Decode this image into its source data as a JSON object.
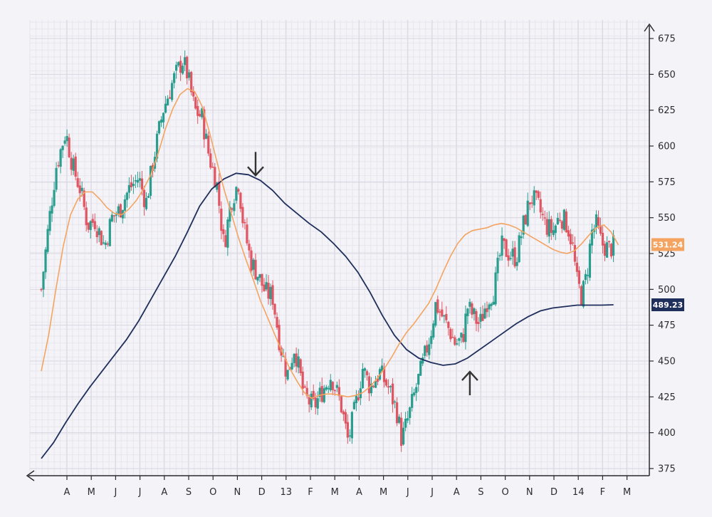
{
  "colors": {
    "background": "#f4f3f8",
    "grid_major": "#d9d7e1",
    "grid_minor": "#e7e6ed",
    "axis": "#2b2b2b",
    "candle_up": "#2a9d8f",
    "candle_down": "#e05561",
    "sma_short": "#f4a460",
    "sma_long": "#1f2f5c",
    "arrow": "#333333"
  },
  "chart_data": {
    "type": "candlestick",
    "grid": true,
    "y_axis_position": "right",
    "ylim": [
      370,
      682
    ],
    "y_ticks": [
      375,
      400,
      425,
      450,
      475,
      500,
      525,
      550,
      575,
      600,
      625,
      650,
      675
    ],
    "x_axis": {
      "labels": [
        "A",
        "M",
        "J",
        "J",
        "A",
        "S",
        "O",
        "N",
        "D",
        "13",
        "F",
        "M",
        "A",
        "M",
        "J",
        "J",
        "A",
        "S",
        "O",
        "N",
        "D",
        "14",
        "F",
        "M"
      ],
      "range": [
        0,
        24.5
      ]
    },
    "price_anchors": [
      [
        0.0,
        500
      ],
      [
        0.3,
        545
      ],
      [
        0.6,
        585
      ],
      [
        1.0,
        610
      ],
      [
        1.3,
        585
      ],
      [
        1.6,
        570
      ],
      [
        1.9,
        545
      ],
      [
        2.2,
        548
      ],
      [
        2.6,
        530
      ],
      [
        2.9,
        550
      ],
      [
        3.2,
        555
      ],
      [
        3.6,
        570
      ],
      [
        4.0,
        578
      ],
      [
        4.3,
        560
      ],
      [
        4.6,
        590
      ],
      [
        5.0,
        625
      ],
      [
        5.4,
        645
      ],
      [
        5.8,
        660
      ],
      [
        6.0,
        650
      ],
      [
        6.3,
        625
      ],
      [
        6.6,
        620
      ],
      [
        6.9,
        592
      ],
      [
        7.2,
        575
      ],
      [
        7.5,
        530
      ],
      [
        7.8,
        562
      ],
      [
        8.1,
        575
      ],
      [
        8.3,
        545
      ],
      [
        8.6,
        520
      ],
      [
        8.9,
        510
      ],
      [
        9.2,
        498
      ],
      [
        9.5,
        495
      ],
      [
        9.8,
        462
      ],
      [
        10.1,
        440
      ],
      [
        10.4,
        460
      ],
      [
        10.8,
        425
      ],
      [
        11.2,
        418
      ],
      [
        11.5,
        428
      ],
      [
        11.9,
        440
      ],
      [
        12.3,
        420
      ],
      [
        12.6,
        394
      ],
      [
        12.9,
        418
      ],
      [
        13.2,
        445
      ],
      [
        13.5,
        432
      ],
      [
        13.9,
        442
      ],
      [
        14.3,
        430
      ],
      [
        14.6,
        415
      ],
      [
        14.8,
        395
      ],
      [
        15.1,
        412
      ],
      [
        15.4,
        432
      ],
      [
        15.7,
        450
      ],
      [
        16.0,
        470
      ],
      [
        16.2,
        490
      ],
      [
        16.5,
        480
      ],
      [
        16.8,
        470
      ],
      [
        17.0,
        462
      ],
      [
        17.3,
        465
      ],
      [
        17.5,
        488
      ],
      [
        17.8,
        480
      ],
      [
        18.0,
        475
      ],
      [
        18.3,
        492
      ],
      [
        18.6,
        500
      ],
      [
        18.9,
        530
      ],
      [
        19.2,
        525
      ],
      [
        19.5,
        522
      ],
      [
        19.8,
        545
      ],
      [
        20.1,
        565
      ],
      [
        20.4,
        558
      ],
      [
        20.7,
        545
      ],
      [
        21.0,
        540
      ],
      [
        21.3,
        552
      ],
      [
        21.6,
        545
      ],
      [
        21.8,
        532
      ],
      [
        22.0,
        505
      ],
      [
        22.2,
        495
      ],
      [
        22.4,
        510
      ],
      [
        22.6,
        540
      ],
      [
        22.8,
        545
      ],
      [
        23.0,
        532
      ],
      [
        23.3,
        528
      ],
      [
        23.5,
        530
      ]
    ],
    "sma_short": [
      [
        0.0,
        443
      ],
      [
        0.3,
        468
      ],
      [
        0.6,
        500
      ],
      [
        0.9,
        530
      ],
      [
        1.2,
        552
      ],
      [
        1.5,
        563
      ],
      [
        1.8,
        568
      ],
      [
        2.1,
        568
      ],
      [
        2.4,
        563
      ],
      [
        2.7,
        557
      ],
      [
        3.0,
        553
      ],
      [
        3.3,
        552
      ],
      [
        3.6,
        556
      ],
      [
        3.9,
        562
      ],
      [
        4.2,
        570
      ],
      [
        4.5,
        580
      ],
      [
        4.8,
        595
      ],
      [
        5.1,
        612
      ],
      [
        5.4,
        626
      ],
      [
        5.7,
        636
      ],
      [
        6.0,
        640
      ],
      [
        6.3,
        638
      ],
      [
        6.6,
        628
      ],
      [
        6.9,
        610
      ],
      [
        7.2,
        590
      ],
      [
        7.5,
        570
      ],
      [
        7.8,
        553
      ],
      [
        8.1,
        536
      ],
      [
        8.4,
        521
      ],
      [
        8.7,
        507
      ],
      [
        9.0,
        492
      ],
      [
        9.3,
        480
      ],
      [
        9.6,
        468
      ],
      [
        9.9,
        456
      ],
      [
        10.2,
        445
      ],
      [
        10.5,
        436
      ],
      [
        10.8,
        428
      ],
      [
        11.1,
        424
      ],
      [
        11.4,
        426
      ],
      [
        11.7,
        427
      ],
      [
        12.0,
        427
      ],
      [
        12.3,
        426
      ],
      [
        12.6,
        425
      ],
      [
        12.9,
        426
      ],
      [
        13.2,
        428
      ],
      [
        13.5,
        432
      ],
      [
        13.8,
        438
      ],
      [
        14.1,
        445
      ],
      [
        14.4,
        453
      ],
      [
        14.7,
        462
      ],
      [
        15.0,
        470
      ],
      [
        15.3,
        476
      ],
      [
        15.6,
        483
      ],
      [
        15.9,
        490
      ],
      [
        16.2,
        500
      ],
      [
        16.5,
        512
      ],
      [
        16.8,
        523
      ],
      [
        17.1,
        532
      ],
      [
        17.4,
        538
      ],
      [
        17.7,
        541
      ],
      [
        18.0,
        542
      ],
      [
        18.3,
        543
      ],
      [
        18.6,
        545
      ],
      [
        18.9,
        546
      ],
      [
        19.2,
        545
      ],
      [
        19.5,
        543
      ],
      [
        19.8,
        540
      ],
      [
        20.1,
        537
      ],
      [
        20.4,
        534
      ],
      [
        20.7,
        531
      ],
      [
        21.0,
        528
      ],
      [
        21.3,
        526
      ],
      [
        21.6,
        525
      ],
      [
        21.9,
        527
      ],
      [
        22.2,
        532
      ],
      [
        22.5,
        538
      ],
      [
        22.8,
        543
      ],
      [
        23.1,
        545
      ],
      [
        23.4,
        540
      ],
      [
        23.7,
        531
      ]
    ],
    "sma_long": [
      [
        0.0,
        382
      ],
      [
        0.5,
        393
      ],
      [
        1.0,
        407
      ],
      [
        1.5,
        420
      ],
      [
        2.0,
        432
      ],
      [
        2.5,
        443
      ],
      [
        3.0,
        454
      ],
      [
        3.5,
        465
      ],
      [
        4.0,
        478
      ],
      [
        4.5,
        493
      ],
      [
        5.0,
        508
      ],
      [
        5.5,
        523
      ],
      [
        6.0,
        540
      ],
      [
        6.5,
        558
      ],
      [
        7.0,
        570
      ],
      [
        7.5,
        577
      ],
      [
        8.0,
        581
      ],
      [
        8.5,
        580
      ],
      [
        9.0,
        576
      ],
      [
        9.5,
        569
      ],
      [
        10.0,
        560
      ],
      [
        10.5,
        553
      ],
      [
        11.0,
        546
      ],
      [
        11.5,
        540
      ],
      [
        12.0,
        532
      ],
      [
        12.5,
        523
      ],
      [
        13.0,
        512
      ],
      [
        13.5,
        498
      ],
      [
        14.0,
        482
      ],
      [
        14.5,
        468
      ],
      [
        15.0,
        458
      ],
      [
        15.5,
        452
      ],
      [
        16.0,
        449
      ],
      [
        16.5,
        447
      ],
      [
        17.0,
        448
      ],
      [
        17.5,
        452
      ],
      [
        18.0,
        458
      ],
      [
        18.5,
        464
      ],
      [
        19.0,
        470
      ],
      [
        19.5,
        476
      ],
      [
        20.0,
        481
      ],
      [
        20.5,
        485
      ],
      [
        21.0,
        487
      ],
      [
        21.5,
        488
      ],
      [
        22.0,
        489
      ],
      [
        22.5,
        489
      ],
      [
        23.0,
        489
      ],
      [
        23.5,
        489.23
      ]
    ],
    "badges": [
      {
        "value": 531.24,
        "label": "531.24",
        "color": "#f4a460"
      },
      {
        "value": 489.23,
        "label": "489.23",
        "color": "#1f2f5c"
      }
    ],
    "annotations": [
      {
        "type": "arrow-down",
        "x": 8.8,
        "y": 578
      },
      {
        "type": "arrow-up",
        "x": 17.6,
        "y": 444
      }
    ]
  }
}
